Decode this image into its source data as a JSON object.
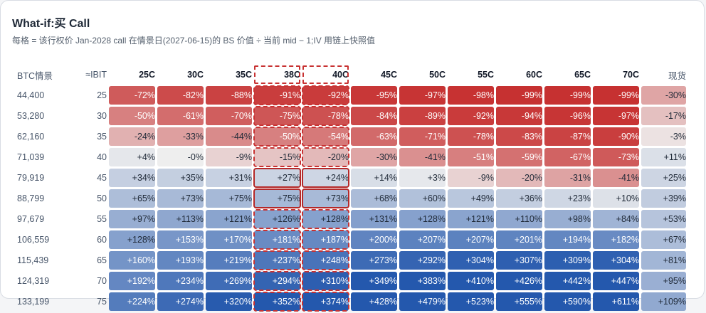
{
  "title": "What-if:买 Call",
  "subtitle": "每格 = 该行权价 Jan-2028 call 在情景日(2027-06-15)的 BS 价值 ÷ 当前 mid − 1;IV 用链上快照值",
  "headers": {
    "btc": "BTC情景",
    "ibit": "≈IBIT",
    "strikes": [
      "25C",
      "30C",
      "35C",
      "38C",
      "40C",
      "45C",
      "50C",
      "55C",
      "60C",
      "65C",
      "70C"
    ],
    "spot": "现货"
  },
  "selected_strikes": [
    "38C",
    "40C"
  ],
  "rows": [
    {
      "btc": "44,400",
      "ibit": "25",
      "cells": [
        "-72%",
        "-82%",
        "-88%",
        "-91%",
        "-92%",
        "-95%",
        "-97%",
        "-98%",
        "-99%",
        "-99%",
        "-99%"
      ],
      "spot": "-30%"
    },
    {
      "btc": "53,280",
      "ibit": "30",
      "cells": [
        "-50%",
        "-61%",
        "-70%",
        "-75%",
        "-78%",
        "-84%",
        "-89%",
        "-92%",
        "-94%",
        "-96%",
        "-97%"
      ],
      "spot": "-17%"
    },
    {
      "btc": "62,160",
      "ibit": "35",
      "cells": [
        "-24%",
        "-33%",
        "-44%",
        "-50%",
        "-54%",
        "-63%",
        "-71%",
        "-78%",
        "-83%",
        "-87%",
        "-90%"
      ],
      "spot": "-3%"
    },
    {
      "btc": "71,039",
      "ibit": "40",
      "cells": [
        "+4%",
        "-0%",
        "-9%",
        "-15%",
        "-20%",
        "-30%",
        "-41%",
        "-51%",
        "-59%",
        "-67%",
        "-73%"
      ],
      "spot": "+11%"
    },
    {
      "btc": "79,919",
      "ibit": "45",
      "cells": [
        "+34%",
        "+35%",
        "+31%",
        "+27%",
        "+24%",
        "+14%",
        "+3%",
        "-9%",
        "-20%",
        "-31%",
        "-41%"
      ],
      "spot": "+25%"
    },
    {
      "btc": "88,799",
      "ibit": "50",
      "cells": [
        "+65%",
        "+73%",
        "+75%",
        "+75%",
        "+73%",
        "+68%",
        "+60%",
        "+49%",
        "+36%",
        "+23%",
        "+10%"
      ],
      "spot": "+39%"
    },
    {
      "btc": "97,679",
      "ibit": "55",
      "cells": [
        "+97%",
        "+113%",
        "+121%",
        "+126%",
        "+128%",
        "+131%",
        "+128%",
        "+121%",
        "+110%",
        "+98%",
        "+84%"
      ],
      "spot": "+53%"
    },
    {
      "btc": "106,559",
      "ibit": "60",
      "cells": [
        "+128%",
        "+153%",
        "+170%",
        "+181%",
        "+187%",
        "+200%",
        "+207%",
        "+207%",
        "+201%",
        "+194%",
        "+182%"
      ],
      "spot": "+67%"
    },
    {
      "btc": "115,439",
      "ibit": "65",
      "cells": [
        "+160%",
        "+193%",
        "+219%",
        "+237%",
        "+248%",
        "+273%",
        "+292%",
        "+304%",
        "+307%",
        "+309%",
        "+304%"
      ],
      "spot": "+81%"
    },
    {
      "btc": "124,319",
      "ibit": "70",
      "cells": [
        "+192%",
        "+234%",
        "+269%",
        "+294%",
        "+310%",
        "+349%",
        "+383%",
        "+410%",
        "+426%",
        "+442%",
        "+447%"
      ],
      "spot": "+95%"
    },
    {
      "btc": "133,199",
      "ibit": "75",
      "cells": [
        "+224%",
        "+274%",
        "+320%",
        "+352%",
        "+374%",
        "+428%",
        "+479%",
        "+523%",
        "+555%",
        "+590%",
        "+611%"
      ],
      "spot": "+109%"
    }
  ],
  "colors": {
    "negative": "#c62f2f",
    "neutral": "#eeeeee",
    "positive": "#2458ad",
    "highlight_border": "#c83232"
  }
}
